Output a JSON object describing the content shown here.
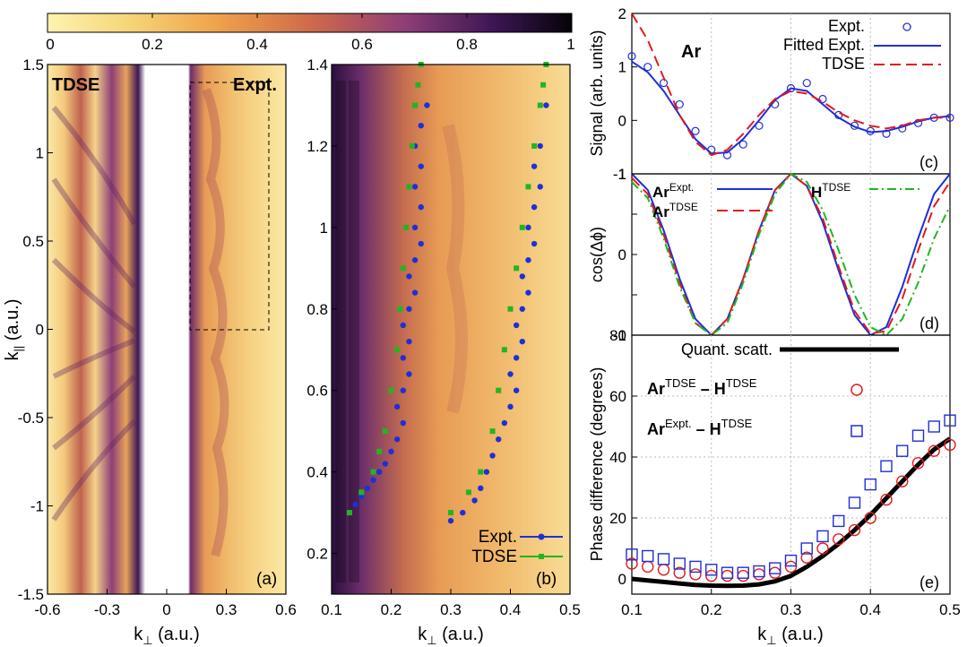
{
  "colorbar": {
    "ticks": [
      "0",
      "0.2",
      "0.4",
      "0.6",
      "0.8",
      "1"
    ],
    "colormap": [
      "#fdf3b0",
      "#f6d77a",
      "#eea44c",
      "#cf6b4a",
      "#8e3f77",
      "#3d1654",
      "#050308"
    ]
  },
  "panels": {
    "a": {
      "label_left": "TDSE",
      "label_right": "Expt.",
      "panel_tag": "(a)",
      "xticks": [
        "-0.6",
        "-0.3",
        "0",
        "0.3",
        "0.6"
      ],
      "yticks": [
        "1.5",
        "1",
        "0.5",
        "0",
        "-0.5",
        "-1",
        "-1.5"
      ],
      "xlabel": "k",
      "xlabel_sub": "⊥",
      "xlabel_unit": " (a.u.)",
      "ylabel": "k",
      "ylabel_sub": "||",
      "ylabel_unit": " (a.u.)"
    },
    "b": {
      "panel_tag": "(b)",
      "xticks": [
        "0.1",
        "0.2",
        "0.3",
        "0.4",
        "0.5"
      ],
      "yticks": [
        "1.4",
        "1.2",
        "1",
        "0.8",
        "0.6",
        "0.4",
        "0.2"
      ],
      "xlabel": "k",
      "xlabel_sub": "⊥",
      "xlabel_unit": " (a.u.)",
      "legend": [
        "Expt.",
        "TDSE"
      ]
    },
    "c": {
      "panel_tag": "(c)",
      "species": "Ar",
      "ylabel": "Signal (arb. units)",
      "yticks": [
        "2",
        "1",
        "0",
        "-1"
      ],
      "legend": [
        "Expt.",
        "Fitted Expt.",
        "TDSE"
      ]
    },
    "d": {
      "panel_tag": "(d)",
      "ylabel": "cos(Δϕ)",
      "yticks": [
        "1",
        "0.5",
        "0",
        "-0.5",
        "-1"
      ],
      "legend": [
        {
          "base": "Ar",
          "sup": "Expt."
        },
        {
          "base": "Ar",
          "sup": "TDSE"
        },
        {
          "base": "H",
          "sup": "TDSE"
        }
      ]
    },
    "e": {
      "panel_tag": "(e)",
      "ylabel": "Phase difference (degrees)",
      "yticks": [
        "80",
        "60",
        "40",
        "20",
        "0"
      ],
      "xticks": [
        "0.1",
        "0.2",
        "0.3",
        "0.4",
        "0.5"
      ],
      "xlabel": "k",
      "xlabel_sub": "⊥",
      "xlabel_unit": " (a.u.)",
      "legend": [
        {
          "text": "Quant. scatt."
        },
        {
          "base1": "Ar",
          "sup1": "TDSE",
          "mid": " – ",
          "base2": "H",
          "sup2": "TDSE"
        },
        {
          "base1": "Ar",
          "sup1": "Expt.",
          "mid": " – ",
          "base2": "H",
          "sup2": "TDSE"
        }
      ]
    }
  },
  "chart_data": [
    {
      "panel": "b",
      "type": "scatter",
      "xlim": [
        0.1,
        0.5
      ],
      "ylim": [
        0.1,
        1.4
      ],
      "series": [
        {
          "name": "Expt.",
          "color": "#1f2fd8",
          "branch1_x": [
            0.13,
            0.14,
            0.15,
            0.16,
            0.17,
            0.18,
            0.19,
            0.2,
            0.21,
            0.22,
            0.21,
            0.22,
            0.23,
            0.22,
            0.23,
            0.22,
            0.23,
            0.24,
            0.23,
            0.24,
            0.25,
            0.24,
            0.25,
            0.24,
            0.25,
            0.24,
            0.25,
            0.26
          ],
          "branch1_y": [
            0.3,
            0.32,
            0.34,
            0.36,
            0.38,
            0.4,
            0.42,
            0.45,
            0.48,
            0.52,
            0.56,
            0.6,
            0.64,
            0.68,
            0.72,
            0.76,
            0.8,
            0.84,
            0.88,
            0.92,
            0.96,
            1.0,
            1.05,
            1.1,
            1.15,
            1.2,
            1.25,
            1.3
          ],
          "branch2_x": [
            0.3,
            0.32,
            0.34,
            0.35,
            0.36,
            0.37,
            0.38,
            0.39,
            0.4,
            0.41,
            0.4,
            0.41,
            0.42,
            0.41,
            0.42,
            0.43,
            0.42,
            0.43,
            0.44,
            0.43,
            0.44,
            0.45,
            0.44,
            0.45,
            0.46
          ],
          "branch2_y": [
            0.28,
            0.3,
            0.33,
            0.36,
            0.4,
            0.44,
            0.48,
            0.52,
            0.56,
            0.6,
            0.64,
            0.68,
            0.72,
            0.76,
            0.8,
            0.84,
            0.88,
            0.92,
            0.96,
            1.0,
            1.05,
            1.1,
            1.15,
            1.2,
            1.3
          ]
        },
        {
          "name": "TDSE",
          "color": "#22b522",
          "branch1_x": [
            0.13,
            0.15,
            0.17,
            0.18,
            0.19,
            0.2,
            0.21,
            0.215,
            0.22,
            0.225,
            0.23,
            0.235,
            0.24,
            0.245,
            0.25
          ],
          "branch1_y": [
            0.3,
            0.35,
            0.4,
            0.45,
            0.5,
            0.6,
            0.7,
            0.8,
            0.9,
            1.0,
            1.1,
            1.2,
            1.3,
            1.35,
            1.4
          ],
          "branch2_x": [
            0.3,
            0.33,
            0.35,
            0.37,
            0.38,
            0.39,
            0.4,
            0.41,
            0.42,
            0.43,
            0.44,
            0.45,
            0.455,
            0.46
          ],
          "branch2_y": [
            0.3,
            0.35,
            0.4,
            0.5,
            0.6,
            0.7,
            0.8,
            0.9,
            1.0,
            1.1,
            1.2,
            1.3,
            1.35,
            1.4
          ]
        }
      ]
    },
    {
      "panel": "c",
      "type": "line",
      "xlim": [
        0.1,
        0.5
      ],
      "ylim": [
        -1,
        2
      ],
      "x": [
        0.1,
        0.12,
        0.14,
        0.16,
        0.18,
        0.2,
        0.22,
        0.24,
        0.26,
        0.28,
        0.3,
        0.32,
        0.34,
        0.36,
        0.38,
        0.4,
        0.42,
        0.44,
        0.46,
        0.48,
        0.5
      ],
      "series": [
        {
          "name": "Expt.",
          "style": "circles",
          "color": "#1f2fd8",
          "values": [
            1.2,
            1.0,
            0.7,
            0.3,
            -0.2,
            -0.55,
            -0.65,
            -0.45,
            -0.1,
            0.3,
            0.6,
            0.7,
            0.4,
            0.1,
            -0.1,
            -0.2,
            -0.25,
            -0.15,
            -0.05,
            0.05,
            0.05
          ]
        },
        {
          "name": "Fitted Expt.",
          "style": "solid",
          "color": "#1f2fd8",
          "values": [
            1.1,
            0.9,
            0.55,
            0.1,
            -0.35,
            -0.62,
            -0.6,
            -0.35,
            0.0,
            0.38,
            0.6,
            0.55,
            0.3,
            0.05,
            -0.12,
            -0.22,
            -0.2,
            -0.12,
            -0.02,
            0.05,
            0.08
          ]
        },
        {
          "name": "TDSE",
          "style": "dashed",
          "color": "#e31a1c",
          "values": [
            2.0,
            1.5,
            0.8,
            0.1,
            -0.4,
            -0.65,
            -0.55,
            -0.25,
            0.1,
            0.4,
            0.55,
            0.5,
            0.35,
            0.15,
            0.0,
            -0.1,
            -0.15,
            -0.1,
            0.0,
            0.05,
            0.05
          ]
        }
      ]
    },
    {
      "panel": "d",
      "type": "line",
      "xlim": [
        0.1,
        0.5
      ],
      "ylim": [
        -1,
        1
      ],
      "x": [
        0.1,
        0.12,
        0.14,
        0.16,
        0.18,
        0.2,
        0.22,
        0.24,
        0.26,
        0.28,
        0.3,
        0.32,
        0.34,
        0.36,
        0.38,
        0.4,
        0.42,
        0.44,
        0.46,
        0.48,
        0.5
      ],
      "series": [
        {
          "name": "Ar Expt.",
          "style": "solid",
          "color": "#1f2fd8",
          "values": [
            1.0,
            0.8,
            0.3,
            -0.3,
            -0.8,
            -1.0,
            -0.8,
            -0.3,
            0.3,
            0.8,
            1.0,
            0.85,
            0.4,
            -0.2,
            -0.75,
            -1.0,
            -0.9,
            -0.4,
            0.2,
            0.75,
            1.0
          ]
        },
        {
          "name": "Ar TDSE",
          "style": "dashed",
          "color": "#e31a1c",
          "values": [
            0.95,
            0.75,
            0.25,
            -0.35,
            -0.85,
            -1.0,
            -0.8,
            -0.3,
            0.3,
            0.8,
            1.0,
            0.85,
            0.45,
            -0.15,
            -0.7,
            -0.98,
            -0.95,
            -0.55,
            0.05,
            0.6,
            0.9
          ]
        },
        {
          "name": "H TDSE",
          "style": "dashdot",
          "color": "#22b522",
          "values": [
            0.9,
            0.7,
            0.2,
            -0.4,
            -0.85,
            -1.0,
            -0.85,
            -0.35,
            0.25,
            0.75,
            1.0,
            0.9,
            0.55,
            0.05,
            -0.5,
            -0.9,
            -1.0,
            -0.8,
            -0.35,
            0.2,
            0.6
          ]
        }
      ]
    },
    {
      "panel": "e",
      "type": "scatter",
      "xlim": [
        0.1,
        0.5
      ],
      "ylim": [
        -5,
        80
      ],
      "x": [
        0.1,
        0.12,
        0.14,
        0.16,
        0.18,
        0.2,
        0.22,
        0.24,
        0.26,
        0.28,
        0.3,
        0.32,
        0.34,
        0.36,
        0.38,
        0.4,
        0.42,
        0.44,
        0.46,
        0.48,
        0.5
      ],
      "series": [
        {
          "name": "Quant. scatt.",
          "style": "thick-line",
          "color": "#000000",
          "values": [
            0,
            -0.5,
            -1,
            -1.5,
            -2,
            -2.2,
            -2.3,
            -2.2,
            -1.8,
            -0.8,
            1,
            4,
            7.5,
            11.5,
            16,
            21,
            26.5,
            32,
            37.5,
            42.5,
            46
          ]
        },
        {
          "name": "Ar TDSE − H TDSE",
          "style": "circles",
          "color": "#e31a1c",
          "values": [
            5,
            4,
            3,
            2,
            1.5,
            1,
            1,
            1,
            1.5,
            2,
            4,
            7,
            10,
            13,
            16,
            20,
            26,
            32,
            38,
            42,
            44
          ]
        },
        {
          "name": "Ar Expt. − H TDSE",
          "style": "squares",
          "color": "#1f2fd8",
          "values": [
            8,
            7.5,
            6.5,
            5,
            4,
            3,
            2,
            2,
            2.5,
            3.5,
            6,
            10,
            14,
            19,
            25,
            31,
            37,
            42,
            47,
            50,
            52
          ]
        }
      ]
    }
  ]
}
